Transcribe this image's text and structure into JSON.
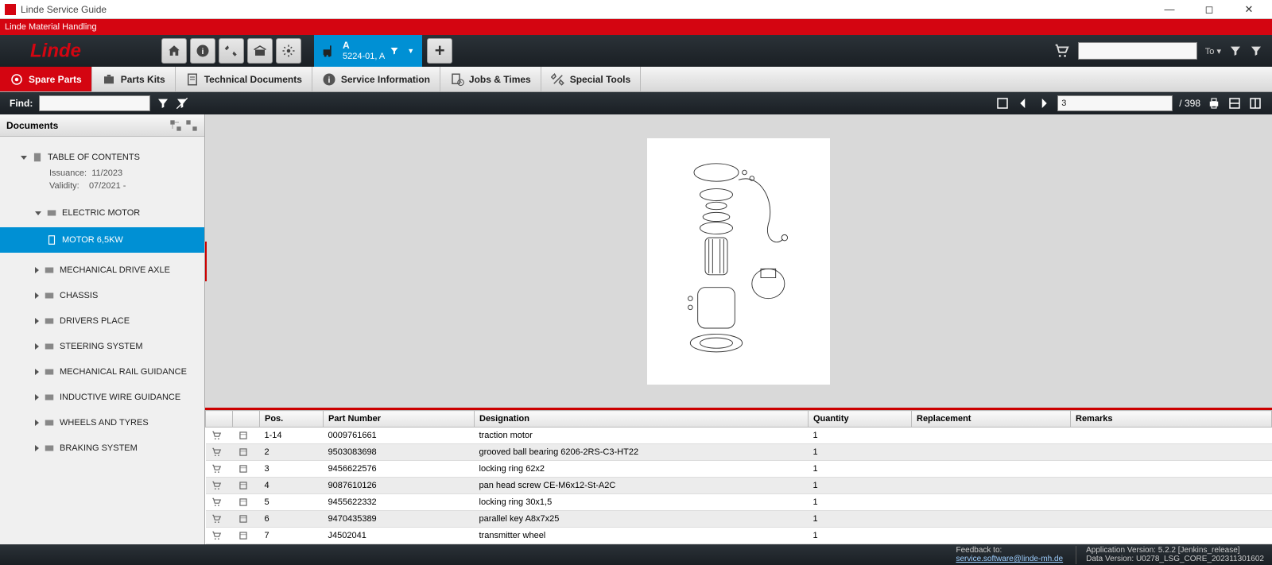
{
  "window": {
    "title": "Linde Service Guide"
  },
  "brandbar": {
    "text": "Linde Material Handling"
  },
  "header": {
    "logo_text": "Linde",
    "vehicle_tab": {
      "line1": "A",
      "line2": "5224-01, A"
    },
    "search_placeholder": "",
    "search_suffix": "To ▾"
  },
  "ribbon": {
    "tabs": [
      {
        "id": "spare-parts",
        "label": "Spare Parts"
      },
      {
        "id": "parts-kits",
        "label": "Parts Kits"
      },
      {
        "id": "tech-docs",
        "label": "Technical Documents"
      },
      {
        "id": "service-info",
        "label": "Service Information"
      },
      {
        "id": "jobs-times",
        "label": "Jobs & Times"
      },
      {
        "id": "special-tools",
        "label": "Special Tools"
      }
    ]
  },
  "findbar": {
    "label": "Find:",
    "page_value": "3",
    "page_total": "/  398"
  },
  "sidebar": {
    "header": "Documents",
    "toc_label": "TABLE OF CONTENTS",
    "issuance_label": "Issuance:",
    "issuance_value": "11/2023",
    "validity_label": "Validity:",
    "validity_value": "07/2021 -",
    "nodes": [
      {
        "label": "ELECTRIC MOTOR",
        "expanded": true,
        "children": [
          {
            "label": "MOTOR 6,5KW",
            "selected": true
          }
        ]
      },
      {
        "label": "MECHANICAL DRIVE AXLE"
      },
      {
        "label": "CHASSIS"
      },
      {
        "label": "DRIVERS PLACE"
      },
      {
        "label": "STEERING SYSTEM"
      },
      {
        "label": "MECHANICAL RAIL GUIDANCE"
      },
      {
        "label": "INDUCTIVE WIRE GUIDANCE"
      },
      {
        "label": "WHEELS AND TYRES"
      },
      {
        "label": "BRAKING SYSTEM"
      }
    ]
  },
  "table": {
    "columns": {
      "pos": "Pos.",
      "pn": "Part Number",
      "des": "Designation",
      "qty": "Quantity",
      "rep": "Replacement",
      "rem": "Remarks"
    },
    "rows": [
      {
        "pos": "1-14",
        "pn": "0009761661",
        "des": "traction motor",
        "qty": "1",
        "rep": "",
        "rem": ""
      },
      {
        "pos": "2",
        "pn": "9503083698",
        "des": "grooved ball bearing 6206-2RS-C3-HT22",
        "qty": "1",
        "rep": "",
        "rem": ""
      },
      {
        "pos": "3",
        "pn": "9456622576",
        "des": "locking ring 62x2",
        "qty": "1",
        "rep": "",
        "rem": ""
      },
      {
        "pos": "4",
        "pn": "9087610126",
        "des": "pan head screw CE-M6x12-St-A2C",
        "qty": "1",
        "rep": "",
        "rem": ""
      },
      {
        "pos": "5",
        "pn": "9455622332",
        "des": "locking ring 30x1,5",
        "qty": "1",
        "rep": "",
        "rem": ""
      },
      {
        "pos": "6",
        "pn": "9470435389",
        "des": "parallel key A8x7x25",
        "qty": "1",
        "rep": "",
        "rem": ""
      },
      {
        "pos": "7",
        "pn": "J4502041",
        "des": "transmitter wheel",
        "qty": "1",
        "rep": "",
        "rem": ""
      }
    ]
  },
  "footer": {
    "feedback_label": "Feedback to:",
    "feedback_email": "service.software@linde-mh.de",
    "app_version": "Application Version: 5.2.2 [Jenkins_release]",
    "data_version": "Data Version: U0278_LSG_CORE_202311301602"
  },
  "colors": {
    "brand_red": "#d40511",
    "accent_blue": "#0090d4"
  }
}
